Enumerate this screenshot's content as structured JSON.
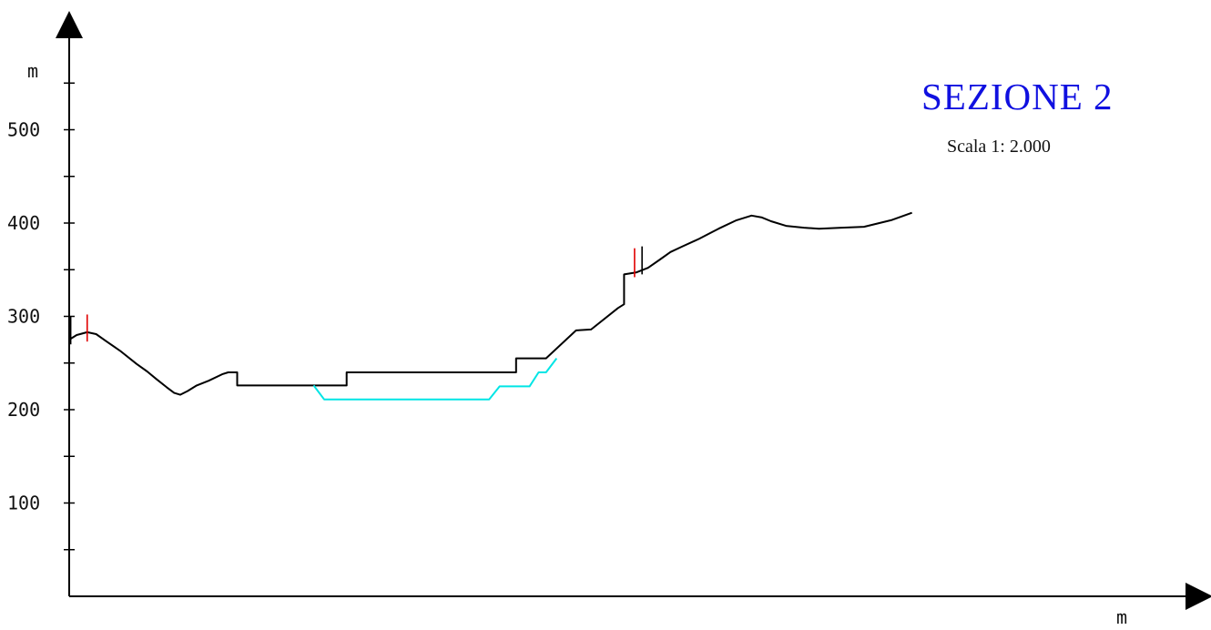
{
  "title": "SEZIONE  2",
  "subtitle": "Scala 1: 2.000",
  "axes": {
    "y_unit": "m",
    "x_unit": "m",
    "y_ticks": [
      100,
      200,
      300,
      400,
      500
    ]
  },
  "colors": {
    "axis": "#000000",
    "terrain": "#000000",
    "excavation": "#00e5e5",
    "markers": "#e00000",
    "title": "#1010e0"
  },
  "chart_data": {
    "type": "line",
    "ylim": [
      0,
      590
    ],
    "grid": false,
    "series": [
      {
        "values": [
          [
            0,
            275
          ],
          [
            5,
            280
          ],
          [
            12,
            283
          ],
          [
            18,
            281
          ],
          [
            25,
            273
          ],
          [
            34,
            263
          ],
          [
            45,
            249
          ],
          [
            52,
            241
          ],
          [
            58,
            233
          ],
          [
            65,
            224
          ],
          [
            70,
            218
          ],
          [
            74,
            216
          ],
          [
            79,
            220
          ],
          [
            85,
            226
          ],
          [
            93,
            231
          ],
          [
            102,
            238
          ],
          [
            106,
            240
          ],
          [
            112,
            240
          ],
          [
            112,
            226
          ],
          [
            185,
            226
          ],
          [
            185,
            240
          ],
          [
            298,
            240
          ],
          [
            298,
            255
          ],
          [
            318,
            255
          ],
          [
            338,
            285
          ],
          [
            348,
            286
          ],
          [
            366,
            309
          ],
          [
            370,
            313
          ],
          [
            370,
            345
          ],
          [
            378,
            347
          ],
          [
            386,
            352
          ],
          [
            394,
            361
          ],
          [
            401,
            369
          ],
          [
            409,
            375
          ],
          [
            420,
            383
          ],
          [
            433,
            394
          ],
          [
            445,
            403
          ],
          [
            455,
            408
          ],
          [
            462,
            406
          ],
          [
            468,
            402
          ],
          [
            478,
            397
          ],
          [
            490,
            395
          ],
          [
            500,
            394
          ],
          [
            515,
            395
          ],
          [
            530,
            396
          ],
          [
            548,
            403
          ],
          [
            562,
            411
          ]
        ]
      },
      {
        "values": [
          [
            163,
            226
          ],
          [
            170,
            211
          ],
          [
            280,
            211
          ],
          [
            287,
            225
          ],
          [
            307,
            225
          ],
          [
            313,
            240
          ],
          [
            318,
            240
          ],
          [
            325,
            255
          ]
        ]
      }
    ],
    "markers": [
      {
        "x": 1,
        "y_from": 270,
        "y_to": 300
      },
      {
        "x": 12,
        "y_from": 273,
        "y_to": 302
      },
      {
        "x": 377,
        "y_from": 342,
        "y_to": 373
      },
      {
        "x": 382,
        "y_from": 345,
        "y_to": 375
      }
    ]
  }
}
